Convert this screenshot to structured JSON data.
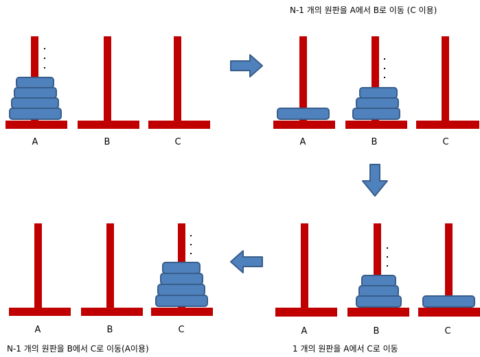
{
  "captions": {
    "step1": "N-1 개의 원판을 A에서 B로 이동 (C 이용)",
    "step2": "1 개의 원판을 A에서 C로 이동",
    "step3": "N-1 개의 원판을 B에서 C로 이동(A이용)"
  },
  "pegs": {
    "a": "A",
    "b": "B",
    "c": "C"
  },
  "colors": {
    "peg": "#c00000",
    "disk_fill": "#4f81bd",
    "disk_stroke": "#385d8a",
    "arrow_fill": "#4f81bd",
    "arrow_stroke": "#385d8a"
  }
}
